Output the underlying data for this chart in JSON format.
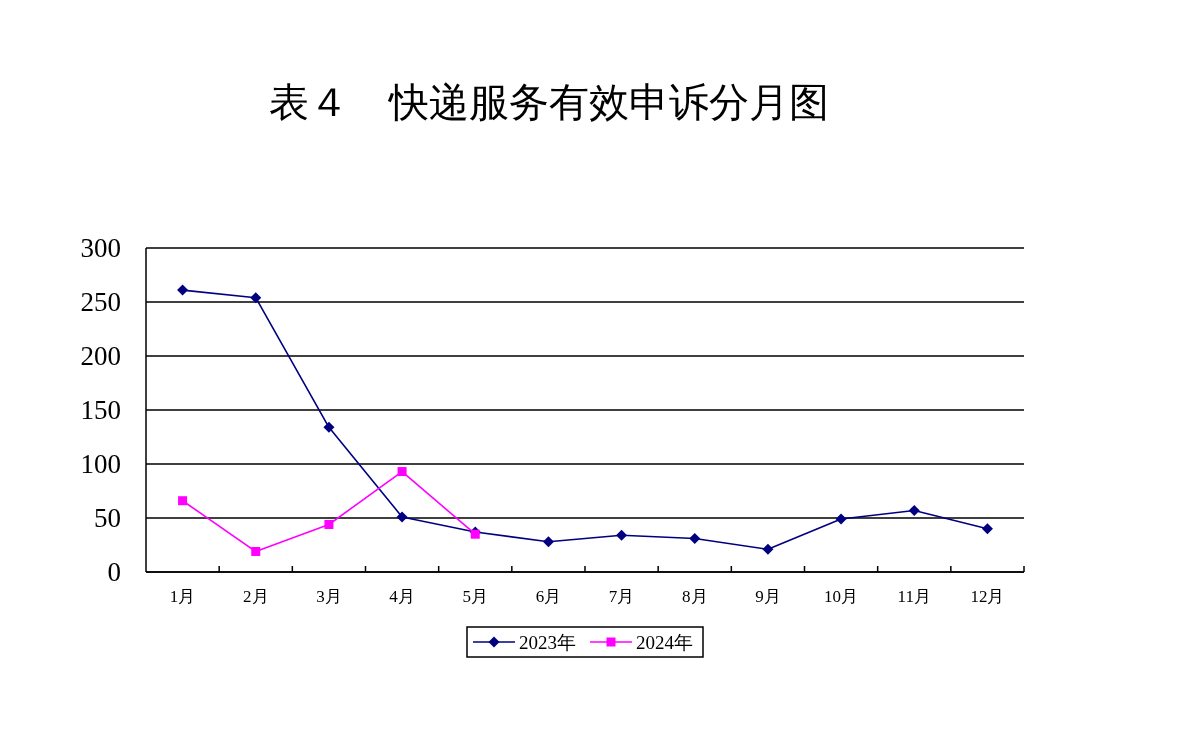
{
  "chart_data": {
    "type": "line",
    "title": "表４　快递服务有效申诉分月图",
    "categories": [
      "1月",
      "2月",
      "3月",
      "4月",
      "5月",
      "6月",
      "7月",
      "8月",
      "9月",
      "10月",
      "11月",
      "12月"
    ],
    "series": [
      {
        "name": "2023年",
        "color": "#000080",
        "marker": "diamond",
        "values": [
          261,
          254,
          134,
          51,
          37,
          28,
          34,
          31,
          21,
          49,
          57,
          40
        ]
      },
      {
        "name": "2024年",
        "color": "#ff00ff",
        "marker": "square",
        "values": [
          66,
          19,
          44,
          93,
          35,
          null,
          null,
          null,
          null,
          null,
          null,
          null
        ]
      }
    ],
    "ylim": [
      0,
      300
    ],
    "yticks": [
      0,
      50,
      100,
      150,
      200,
      250,
      300
    ],
    "grid": "y",
    "legend": "bottom"
  }
}
